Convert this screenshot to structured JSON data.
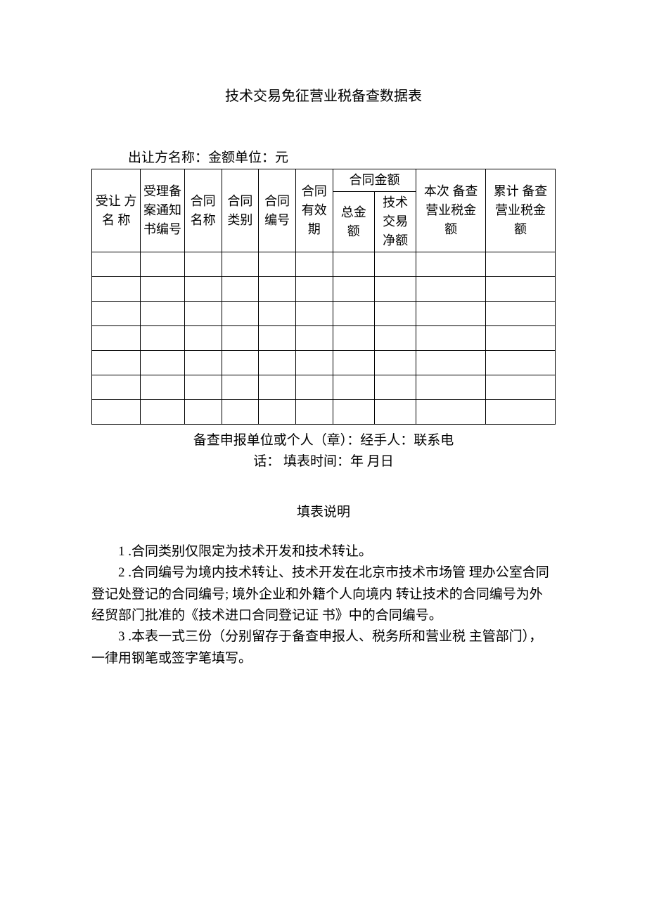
{
  "title": "技术交易免征营业税备查数据表",
  "subtitle": "出让方名称：金额单位：元",
  "headers": {
    "col1": "受让 方名 称",
    "col2": "受理备案通知书编号",
    "col3": "合同名称",
    "col4": "合同类别",
    "col5": "合同编号",
    "col6": "合同有效期",
    "col7group": "合同金额",
    "col7a": "总金额",
    "col7b": "技术交易净额",
    "col8": "本次 备查 营业税金 额",
    "col9": "累计 备查 营业税金 额"
  },
  "footer": {
    "line1": "备查申报单位或个人（章）：经手人：联系电",
    "line2": "话：  填表时间：年 月日"
  },
  "instructions_title": "填表说明",
  "notes": {
    "n1": "1 .合同类别仅限定为技术开发和技术转让。",
    "n2": "2 .合同编号为境内技术转让、技术开发在北京市技术市场管 理办公室合同登记处登记的合同编号; 境外企业和外籍个人向境内 转让技术的合同编号为外经贸部门批准的《技术进口合同登记证 书》中的合同编号。",
    "n3": "3 .本表一式三份（分别留存于备查申报人、税务所和营业税 主管部门），一律用钢笔或签字笔填写。"
  }
}
